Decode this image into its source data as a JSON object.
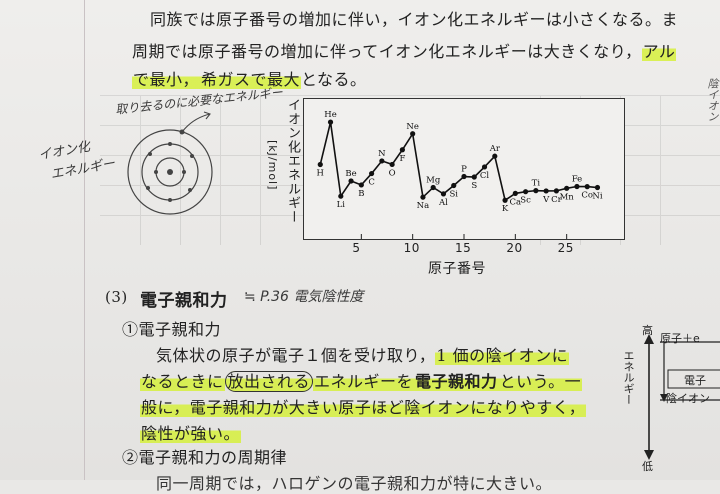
{
  "lines": {
    "l1": "同族では原子番号の増加に伴い，イオン化エネルギーは小さくなる。",
    "l1_tail": "ま",
    "l2": "周期では原子番号の増加に伴ってイオン化エネルギーは大きくなり，",
    "l2_hl": "アル",
    "l3_a": "で最小，",
    "l3_b": "希ガスで最大",
    "l3_c": "となる。"
  },
  "handwriting": {
    "top_note": "取り去るのに必要なエネルギー",
    "left_note_1": "イオン化",
    "left_note_2": "エネルギー",
    "section_note": "≒ P.36 電気陰性度",
    "right_note": "陰イオン"
  },
  "section": {
    "number": "(3)",
    "title": "電子親和力",
    "sub1": "①電子親和力",
    "sub2": "②電子親和力の周期律",
    "bottom_partial": "同一周期では，ハロゲンの電子親和力が特に大きい。"
  },
  "paragraph": {
    "p1_a": "気体状の原子が電子１個を受け取り，",
    "p1_b": "1 価の陰イオンに",
    "p2_a": "なるときに",
    "p2_b": "放出される",
    "p2_c": "エネルギーを",
    "p2_d": "電子親和力",
    "p2_e": "という。一",
    "p3": "般に，電子親和力が大きい原子ほど陰イオンになりやすく，",
    "p4": "陰性が強い。"
  },
  "right_diagram": {
    "high": "高",
    "low": "低",
    "axis": "エネルギー",
    "row1": "原子＋e",
    "row2": "電子",
    "row3": "陰イオン"
  },
  "chart_data": {
    "type": "line",
    "ylabel": "イオン化エネルギー",
    "yunit": "[kJ/mol]",
    "xlabel": "原子番号",
    "x_ticks": [
      5,
      10,
      15,
      20,
      25
    ],
    "xlim": [
      0,
      30
    ],
    "ylim": [
      0,
      2600
    ],
    "series": [
      {
        "points": [
          {
            "z": 1,
            "el": "H",
            "v": 1312
          },
          {
            "z": 2,
            "el": "He",
            "v": 2372
          },
          {
            "z": 3,
            "el": "Li",
            "v": 520
          },
          {
            "z": 4,
            "el": "Be",
            "v": 900
          },
          {
            "z": 5,
            "el": "B",
            "v": 801
          },
          {
            "z": 6,
            "el": "C",
            "v": 1086
          },
          {
            "z": 7,
            "el": "N",
            "v": 1402
          },
          {
            "z": 8,
            "el": "O",
            "v": 1314
          },
          {
            "z": 9,
            "el": "F",
            "v": 1681
          },
          {
            "z": 10,
            "el": "Ne",
            "v": 2081
          },
          {
            "z": 11,
            "el": "Na",
            "v": 496
          },
          {
            "z": 12,
            "el": "Mg",
            "v": 738
          },
          {
            "z": 13,
            "el": "Al",
            "v": 578
          },
          {
            "z": 14,
            "el": "Si",
            "v": 787
          },
          {
            "z": 15,
            "el": "P",
            "v": 1012
          },
          {
            "z": 16,
            "el": "S",
            "v": 1000
          },
          {
            "z": 17,
            "el": "Cl",
            "v": 1251
          },
          {
            "z": 18,
            "el": "Ar",
            "v": 1521
          },
          {
            "z": 19,
            "el": "K",
            "v": 419
          },
          {
            "z": 20,
            "el": "Ca",
            "v": 590
          },
          {
            "z": 21,
            "el": "Sc",
            "v": 633
          },
          {
            "z": 22,
            "el": "Ti",
            "v": 659
          },
          {
            "z": 23,
            "el": "V",
            "v": 651
          },
          {
            "z": 24,
            "el": "Cr",
            "v": 653
          },
          {
            "z": 25,
            "el": "Mn",
            "v": 717
          },
          {
            "z": 26,
            "el": "Fe",
            "v": 762
          },
          {
            "z": 27,
            "el": "Co",
            "v": 760
          },
          {
            "z": 28,
            "el": "Ni",
            "v": 737
          }
        ]
      }
    ]
  },
  "colors": {
    "highlight": "#d6f03c",
    "ink": "#222222",
    "pencil": "#3a3a3a"
  }
}
